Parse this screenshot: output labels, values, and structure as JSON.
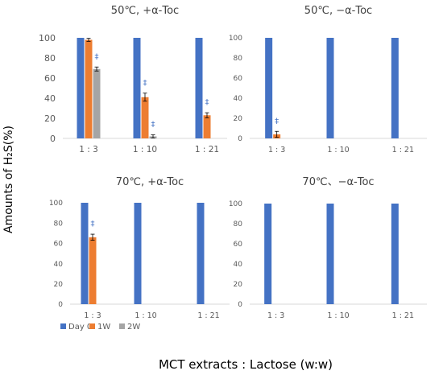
{
  "figure": {
    "ylabel": "Amounts of H₂S(%)",
    "xlabel": "MCT extracts : Lactose (w:w)"
  },
  "colors": {
    "Day 0": "#4472c4",
    "1W": "#ed7d31",
    "2W": "#a5a5a5",
    "marker": "#4472c4",
    "axis": "#d9d9d9",
    "tick": "#595959"
  },
  "legend": {
    "placement": "below-top-left-panel",
    "items": [
      "Day 0",
      "1W",
      "2W"
    ]
  },
  "chart_data": [
    {
      "type": "bar",
      "title": "50℃, +α-Toc",
      "categories": [
        "1 : 3",
        "1 : 10",
        "1 : 21"
      ],
      "ylim": [
        0,
        100
      ],
      "yticks": [
        0,
        20,
        40,
        60,
        80,
        100
      ],
      "series": [
        {
          "name": "Day 0",
          "values": [
            100,
            100,
            100
          ]
        },
        {
          "name": "1W",
          "values": [
            98,
            41,
            23
          ],
          "errors": [
            1.5,
            4,
            2.5
          ]
        },
        {
          "name": "2W",
          "values": [
            69,
            2,
            0
          ],
          "errors": [
            2,
            1.5,
            0
          ]
        }
      ],
      "markers": [
        {
          "symbol": "‡",
          "category": "1 : 3",
          "series": "2W"
        },
        {
          "symbol": "‡",
          "category": "1 : 10",
          "series": "1W"
        },
        {
          "symbol": "‡",
          "category": "1 : 10",
          "series": "2W"
        },
        {
          "symbol": "‡",
          "category": "1 : 21",
          "series": "1W"
        }
      ]
    },
    {
      "type": "bar",
      "title": "50℃, −α-Toc",
      "categories": [
        "1 : 3",
        "1 : 10",
        "1 : 21"
      ],
      "ylim": [
        0,
        100
      ],
      "yticks": [
        0,
        20,
        40,
        60,
        80,
        100
      ],
      "series": [
        {
          "name": "Day 0",
          "values": [
            100,
            100,
            100
          ]
        },
        {
          "name": "1W",
          "values": [
            4,
            0,
            0
          ],
          "errors": [
            3,
            0,
            0
          ]
        },
        {
          "name": "2W",
          "values": [
            0,
            0,
            0
          ]
        }
      ],
      "markers": [
        {
          "symbol": "‡",
          "category": "1 : 3",
          "series": "1W"
        }
      ]
    },
    {
      "type": "bar",
      "title": "70℃, +α-Toc",
      "categories": [
        "1 : 3",
        "1 : 10",
        "1 : 21"
      ],
      "ylim": [
        0,
        100
      ],
      "yticks": [
        0,
        20,
        40,
        60,
        80,
        100
      ],
      "series": [
        {
          "name": "Day 0",
          "values": [
            100,
            100,
            100
          ]
        },
        {
          "name": "1W",
          "values": [
            66,
            0,
            0
          ],
          "errors": [
            3,
            0,
            0
          ]
        },
        {
          "name": "2W",
          "values": [
            0,
            0,
            0
          ]
        }
      ],
      "markers": [
        {
          "symbol": "‡",
          "category": "1 : 3",
          "series": "1W"
        }
      ]
    },
    {
      "type": "bar",
      "title": "70℃、−α-Toc",
      "categories": [
        "1 : 3",
        "1 : 10",
        "1 : 21"
      ],
      "ylim": [
        0,
        100
      ],
      "yticks": [
        0,
        20,
        40,
        60,
        80,
        100
      ],
      "series": [
        {
          "name": "Day 0",
          "values": [
            100,
            100,
            100
          ]
        },
        {
          "name": "1W",
          "values": [
            0,
            0,
            0
          ]
        },
        {
          "name": "2W",
          "values": [
            0,
            0,
            0
          ]
        }
      ],
      "markers": []
    }
  ]
}
